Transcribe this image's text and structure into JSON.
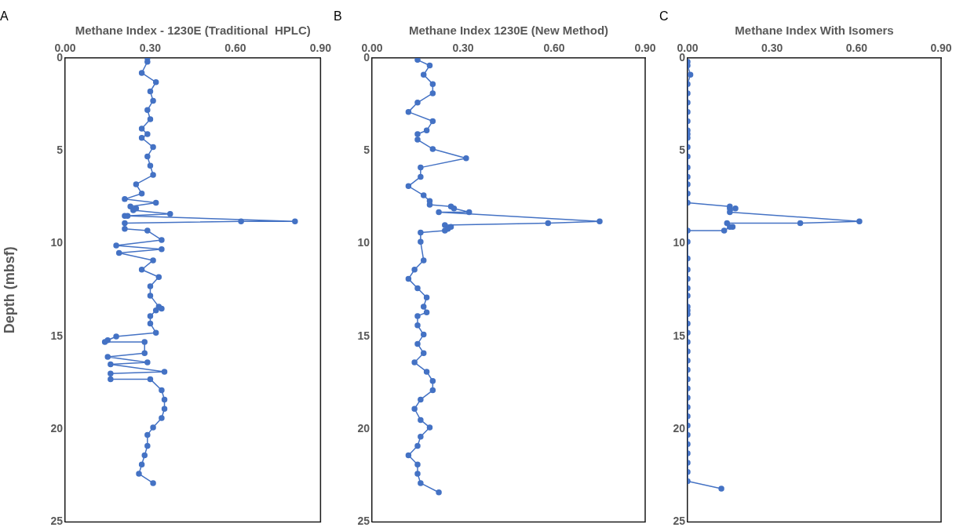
{
  "chart_data": [
    {
      "type": "line",
      "title": "A",
      "xlabel": "Methane Index - 1230E (Traditional  HPLC)",
      "ylabel": "Depth (mbsf)",
      "marker": "circle",
      "legend": false,
      "grid": false,
      "xlim": [
        0,
        0.9
      ],
      "xticks": [
        {
          "value": 0,
          "label": "0.00"
        },
        {
          "value": 0.3,
          "label": "0.30"
        },
        {
          "value": 0.6,
          "label": "0.60"
        },
        {
          "value": 0.9,
          "label": "0.90"
        }
      ],
      "ylim": [
        25,
        0
      ],
      "yticks": [
        0,
        5,
        10,
        15,
        20,
        25
      ],
      "series": [
        {
          "color": "#4472c4",
          "x": [
            0.29,
            0.29,
            0.27,
            0.32,
            0.3,
            0.31,
            0.29,
            0.3,
            0.27,
            0.29,
            0.27,
            0.31,
            0.29,
            0.3,
            0.31,
            0.25,
            0.27,
            0.21,
            0.32,
            0.23,
            0.25,
            0.24,
            0.37,
            0.21,
            0.22,
            0.81,
            0.62,
            0.21,
            0.21,
            0.29,
            0.34,
            0.18,
            0.34,
            0.19,
            0.31,
            0.27,
            0.33,
            0.3,
            0.3,
            0.33,
            0.34,
            0.32,
            0.3,
            0.3,
            0.32,
            0.18,
            0.15,
            0.14,
            0.28,
            0.28,
            0.15,
            0.29,
            0.16,
            0.35,
            0.16,
            0.16,
            0.3,
            0.34,
            0.35,
            0.35,
            0.34,
            0.31,
            0.29,
            0.29,
            0.28,
            0.27,
            0.26,
            0.31
          ],
          "values": [
            0,
            0.2,
            0.8,
            1.3,
            1.8,
            2.3,
            2.8,
            3.3,
            3.8,
            4.1,
            4.3,
            4.8,
            5.3,
            5.8,
            6.3,
            6.8,
            7.3,
            7.6,
            7.8,
            8,
            8.1,
            8.2,
            8.4,
            8.5,
            8.5,
            8.8,
            8.8,
            8.9,
            9.2,
            9.3,
            9.8,
            10.1,
            10.3,
            10.5,
            10.9,
            11.4,
            11.8,
            12.3,
            12.8,
            13.4,
            13.5,
            13.6,
            13.9,
            14.3,
            14.8,
            15,
            15.2,
            15.3,
            15.3,
            15.9,
            16.1,
            16.4,
            16.5,
            16.9,
            17,
            17.3,
            17.3,
            17.9,
            18.4,
            18.9,
            19.4,
            19.9,
            20.3,
            20.9,
            21.4,
            21.9,
            22.4,
            22.9
          ]
        }
      ]
    },
    {
      "type": "line",
      "title": "B",
      "xlabel": "Methane Index 1230E (New Method)",
      "marker": "circle",
      "legend": false,
      "grid": false,
      "xlim": [
        0,
        0.9
      ],
      "xticks": [
        {
          "value": 0,
          "label": "0.00"
        },
        {
          "value": 0.3,
          "label": "0.30"
        },
        {
          "value": 0.6,
          "label": "0.60"
        },
        {
          "value": 0.9,
          "label": "0.90"
        }
      ],
      "ylim": [
        25,
        0
      ],
      "yticks": [
        0,
        5,
        10,
        15,
        20,
        25
      ],
      "series": [
        {
          "color": "#4472c4",
          "x": [
            0.15,
            0.19,
            0.17,
            0.2,
            0.2,
            0.15,
            0.12,
            0.2,
            0.18,
            0.15,
            0.15,
            0.2,
            0.31,
            0.16,
            0.16,
            0.12,
            0.17,
            0.19,
            0.19,
            0.26,
            0.27,
            0.32,
            0.22,
            0.75,
            0.58,
            0.24,
            0.26,
            0.25,
            0.24,
            0.16,
            0.16,
            0.17,
            0.14,
            0.12,
            0.15,
            0.18,
            0.17,
            0.18,
            0.15,
            0.15,
            0.17,
            0.15,
            0.17,
            0.14,
            0.18,
            0.2,
            0.2,
            0.16,
            0.14,
            0.16,
            0.19,
            0.16,
            0.15,
            0.12,
            0.15,
            0.15,
            0.16,
            0.22
          ],
          "values": [
            0.1,
            0.4,
            0.9,
            1.4,
            1.9,
            2.4,
            2.9,
            3.4,
            3.9,
            4.1,
            4.4,
            4.9,
            5.4,
            5.9,
            6.4,
            6.9,
            7.4,
            7.7,
            7.9,
            8,
            8.1,
            8.3,
            8.3,
            8.8,
            8.9,
            9,
            9.1,
            9.2,
            9.3,
            9.4,
            9.9,
            10.9,
            11.4,
            11.9,
            12.4,
            12.9,
            13.4,
            13.7,
            13.9,
            14.4,
            14.9,
            15.4,
            15.9,
            16.4,
            16.9,
            17.4,
            17.9,
            18.4,
            18.9,
            19.5,
            19.9,
            20.4,
            20.9,
            21.4,
            21.9,
            22.4,
            22.9,
            23.4
          ]
        }
      ]
    },
    {
      "type": "line",
      "title": "C",
      "xlabel": "Methane Index With Isomers",
      "marker": "circle",
      "legend": false,
      "grid": false,
      "xlim": [
        0,
        0.9
      ],
      "xticks": [
        {
          "value": 0,
          "label": "0.00"
        },
        {
          "value": 0.3,
          "label": "0.30"
        },
        {
          "value": 0.6,
          "label": "0.60"
        },
        {
          "value": 0.9,
          "label": "0.90"
        }
      ],
      "ylim": [
        25,
        0
      ],
      "yticks": [
        0,
        5,
        10,
        15,
        20,
        25
      ],
      "series": [
        {
          "color": "#4472c4",
          "x": [
            0,
            0,
            0.01,
            0,
            0,
            0,
            0,
            0,
            0,
            0,
            0,
            0,
            0,
            0,
            0,
            0,
            0,
            0,
            0.15,
            0.15,
            0.17,
            0.15,
            0.61,
            0.4,
            0.14,
            0.16,
            0.15,
            0.13,
            0,
            0,
            0,
            0,
            0,
            0,
            0,
            0,
            0,
            0,
            0,
            0,
            0,
            0,
            0,
            0,
            0,
            0,
            0,
            0,
            0,
            0,
            0,
            0,
            0,
            0,
            0,
            0,
            0.12
          ],
          "values": [
            0.2,
            0.4,
            0.9,
            1.4,
            1.9,
            2.4,
            2.9,
            3.4,
            3.9,
            4.1,
            4.3,
            4.8,
            5.3,
            5.9,
            6.4,
            6.8,
            7.3,
            7.8,
            8,
            8.1,
            8.1,
            8.3,
            8.8,
            8.9,
            8.9,
            9.1,
            9.1,
            9.3,
            9.3,
            9.9,
            10.8,
            11.4,
            11.9,
            12.4,
            12.8,
            13.4,
            13.6,
            13.8,
            14.3,
            14.8,
            15.3,
            15.8,
            16.3,
            16.8,
            17.3,
            17.8,
            18.3,
            18.8,
            19.3,
            19.8,
            20.3,
            20.8,
            21.3,
            21.8,
            22.3,
            22.8,
            23.2
          ]
        }
      ]
    }
  ]
}
